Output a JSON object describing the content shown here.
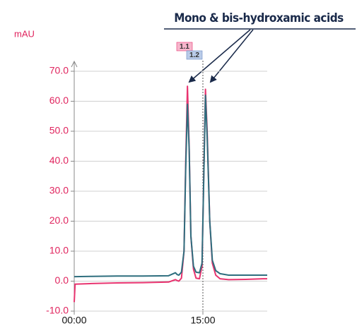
{
  "chart_data": {
    "type": "line",
    "y_label": "mAU",
    "annotation": "Mono & bis-hydroxamic acids",
    "peak_labels": [
      "1.1",
      "1.2"
    ],
    "x": [
      0,
      0.1,
      2,
      5,
      8,
      11,
      11.8,
      12.0,
      12.2,
      12.5,
      12.8,
      13.0,
      13.2,
      13.4,
      13.6,
      13.9,
      14.2,
      14.6,
      14.9,
      15.1,
      15.3,
      15.5,
      15.8,
      16.1,
      16.5,
      17,
      18,
      20,
      22,
      22.5
    ],
    "series": [
      {
        "color": "#e8336f",
        "values": [
          -7,
          -1,
          -0.8,
          -0.6,
          -0.5,
          -0.3,
          0.5,
          0.2,
          0,
          1,
          10,
          40,
          65,
          45,
          15,
          4,
          1,
          0.8,
          5,
          35,
          64,
          50,
          20,
          6,
          2,
          0.8,
          0.5,
          0.6,
          0.8,
          0.8
        ]
      },
      {
        "color": "#2e6e7e",
        "values": [
          1.5,
          1.5,
          1.6,
          1.7,
          1.7,
          1.8,
          2.8,
          2.2,
          2,
          3,
          10,
          38,
          59,
          44,
          15,
          5,
          3,
          2.8,
          6,
          34,
          62,
          48,
          20,
          7,
          3.5,
          2.5,
          2,
          2,
          2,
          2
        ]
      }
    ],
    "xlim": [
      0,
      22.5
    ],
    "xticks": [
      {
        "value": 0,
        "label": "00:00"
      },
      {
        "value": 15,
        "label": "15:00"
      }
    ],
    "ylim": [
      -10,
      70
    ],
    "yticks": [
      {
        "value": -10,
        "label": "-10.0"
      },
      {
        "value": 0,
        "label": "0.0"
      },
      {
        "value": 10,
        "label": "10.0"
      },
      {
        "value": 20,
        "label": "20.0"
      },
      {
        "value": 30,
        "label": "30.0"
      },
      {
        "value": 40,
        "label": "40.0"
      },
      {
        "value": 50,
        "label": "50.0"
      },
      {
        "value": 60,
        "label": "60.0"
      },
      {
        "value": 70,
        "label": "70.0"
      }
    ],
    "grid": true
  }
}
